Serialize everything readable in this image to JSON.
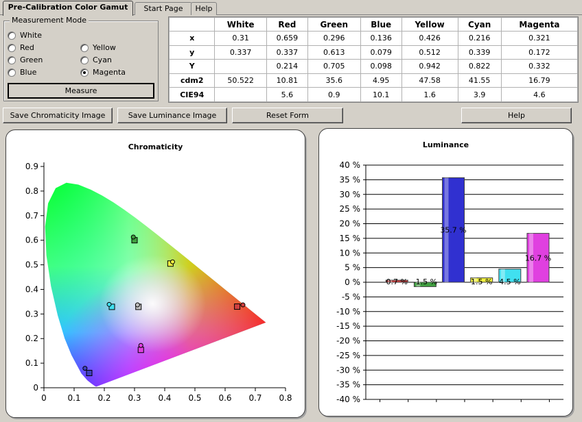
{
  "tabs": [
    {
      "label": "Pre-Calibration Color Gamut",
      "active": true
    },
    {
      "label": "Start Page",
      "active": false
    },
    {
      "label": "Help",
      "active": false
    }
  ],
  "measurement_mode": {
    "title": "Measurement Mode",
    "options": [
      {
        "label": "White",
        "checked": false
      },
      {
        "label": "Red",
        "checked": false
      },
      {
        "label": "Green",
        "checked": false
      },
      {
        "label": "Blue",
        "checked": false
      },
      {
        "label": "Yellow",
        "checked": false
      },
      {
        "label": "Cyan",
        "checked": false
      },
      {
        "label": "Magenta",
        "checked": true
      }
    ],
    "measure_label": "Measure"
  },
  "table": {
    "columns": [
      "",
      "White",
      "Red",
      "Green",
      "Blue",
      "Yellow",
      "Cyan",
      "Magenta"
    ],
    "rows": [
      {
        "label": "x",
        "values": [
          "0.31",
          "0.659",
          "0.296",
          "0.136",
          "0.426",
          "0.216",
          "0.321"
        ]
      },
      {
        "label": "y",
        "values": [
          "0.337",
          "0.337",
          "0.613",
          "0.079",
          "0.512",
          "0.339",
          "0.172"
        ]
      },
      {
        "label": "Y",
        "values": [
          "",
          "0.214",
          "0.705",
          "0.098",
          "0.942",
          "0.822",
          "0.332"
        ]
      },
      {
        "label": "cdm2",
        "values": [
          "50.522",
          "10.81",
          "35.6",
          "4.95",
          "47.58",
          "41.55",
          "16.79"
        ]
      },
      {
        "label": "CIE94",
        "values": [
          "",
          "5.6",
          "0.9",
          "10.1",
          "1.6",
          "3.9",
          "4.6"
        ]
      }
    ]
  },
  "buttons": {
    "save_chromaticity": "Save Chromaticity Image",
    "save_luminance": "Save Luminance Image",
    "reset_form": "Reset Form",
    "help": "Help"
  },
  "chart_data": [
    {
      "type": "scatter",
      "title": "Chromaticity",
      "xlim": [
        0,
        0.8
      ],
      "ylim": [
        0,
        0.9
      ],
      "xticks": [
        "0",
        "0.1",
        "0.2",
        "0.3",
        "0.4",
        "0.5",
        "0.6",
        "0.7",
        "0.8"
      ],
      "yticks": [
        "0",
        "0.1",
        "0.2",
        "0.3",
        "0.4",
        "0.5",
        "0.6",
        "0.7",
        "0.8",
        "0.9"
      ],
      "series": [
        {
          "name": "White",
          "color": "#c0c0c0",
          "target": [
            0.313,
            0.329
          ],
          "measured": [
            0.31,
            0.337
          ]
        },
        {
          "name": "Red",
          "color": "#d04040",
          "target": [
            0.64,
            0.33
          ],
          "measured": [
            0.659,
            0.337
          ]
        },
        {
          "name": "Green",
          "color": "#40a040",
          "target": [
            0.3,
            0.6
          ],
          "measured": [
            0.296,
            0.613
          ]
        },
        {
          "name": "Blue",
          "color": "#4040c0",
          "target": [
            0.15,
            0.06
          ],
          "measured": [
            0.136,
            0.079
          ]
        },
        {
          "name": "Yellow",
          "color": "#f0f040",
          "target": [
            0.419,
            0.505
          ],
          "measured": [
            0.426,
            0.512
          ]
        },
        {
          "name": "Cyan",
          "color": "#40e0f0",
          "target": [
            0.225,
            0.329
          ],
          "measured": [
            0.216,
            0.339
          ]
        },
        {
          "name": "Magenta",
          "color": "#e040e0",
          "target": [
            0.321,
            0.154
          ],
          "measured": [
            0.321,
            0.172
          ]
        }
      ]
    },
    {
      "type": "bar",
      "title": "Luminance",
      "ylim": [
        -40,
        40
      ],
      "yticks": [
        "40 %",
        "35 %",
        "30 %",
        "25 %",
        "20 %",
        "15 %",
        "10 %",
        "5 %",
        "0 %",
        "-5 %",
        "-10 %",
        "-15 %",
        "-20 %",
        "-25 %",
        "-30 %",
        "-35 %",
        "-40 %"
      ],
      "bars": [
        {
          "value": 0.7,
          "label": "0.7 %",
          "color": "#d04040"
        },
        {
          "value": -1.5,
          "label": "-1.5 %",
          "color": "#40a040"
        },
        {
          "value": 35.7,
          "label": "35.7 %",
          "color": "#3030d0"
        },
        {
          "value": 1.5,
          "label": "1.5 %",
          "color": "#f0f040"
        },
        {
          "value": 4.5,
          "label": "4.5 %",
          "color": "#40e0f0"
        },
        {
          "value": 16.7,
          "label": "16.7 %",
          "color": "#e040e0"
        }
      ]
    }
  ]
}
